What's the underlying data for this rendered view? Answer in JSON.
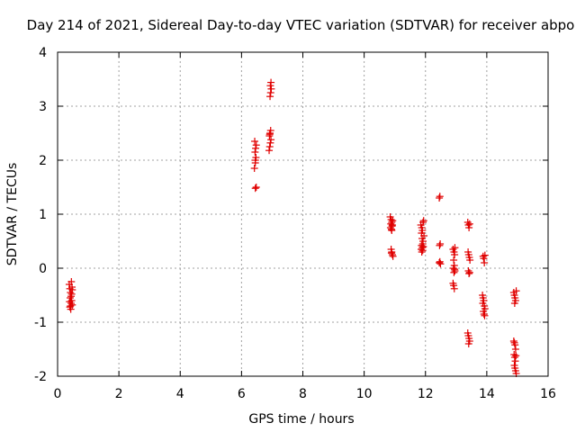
{
  "chart_data": {
    "type": "scatter",
    "title": "Day 214 of 2021, Sidereal Day-to-day VTEC variation (SDTVAR) for receiver abpo",
    "xlabel": "GPS time / hours",
    "ylabel": "SDTVAR / TECUs",
    "xlim": [
      0,
      16
    ],
    "ylim": [
      -2,
      4
    ],
    "xticks": [
      "0",
      "2",
      "4",
      "6",
      "8",
      "10",
      "12",
      "14",
      "16"
    ],
    "yticks": [
      "-2",
      "-1",
      "0",
      "1",
      "2",
      "3",
      "4"
    ],
    "grid": true,
    "marker": "+",
    "color": "#e00000",
    "series": [
      {
        "points": [
          [
            0.38,
            -0.3
          ],
          [
            0.4,
            -0.38
          ],
          [
            0.42,
            -0.45
          ],
          [
            0.44,
            -0.52
          ],
          [
            0.46,
            -0.6
          ],
          [
            0.48,
            -0.68
          ],
          [
            0.4,
            -0.72
          ],
          [
            0.43,
            -0.76
          ],
          [
            0.45,
            -0.25
          ],
          [
            0.47,
            -0.35
          ],
          [
            0.41,
            -0.55
          ],
          [
            0.44,
            -0.65
          ],
          [
            0.46,
            -0.48
          ],
          [
            0.39,
            -0.62
          ],
          [
            0.48,
            -0.4
          ],
          [
            0.42,
            -0.7
          ],
          [
            6.45,
            1.48
          ],
          [
            6.48,
            1.5
          ],
          [
            6.42,
            1.85
          ],
          [
            6.45,
            1.95
          ],
          [
            6.47,
            2.05
          ],
          [
            6.44,
            2.15
          ],
          [
            6.46,
            2.22
          ],
          [
            6.48,
            2.28
          ],
          [
            6.43,
            2.35
          ],
          [
            6.45,
            2.0
          ],
          [
            6.9,
            2.18
          ],
          [
            6.92,
            2.25
          ],
          [
            6.94,
            2.32
          ],
          [
            6.96,
            2.38
          ],
          [
            6.91,
            2.45
          ],
          [
            6.93,
            2.5
          ],
          [
            6.95,
            2.55
          ],
          [
            6.92,
            2.48
          ],
          [
            6.93,
            3.18
          ],
          [
            6.95,
            3.25
          ],
          [
            6.97,
            3.32
          ],
          [
            6.94,
            3.38
          ],
          [
            6.96,
            3.44
          ],
          [
            10.85,
            0.95
          ],
          [
            10.88,
            0.9
          ],
          [
            10.9,
            0.85
          ],
          [
            10.92,
            0.8
          ],
          [
            10.86,
            0.75
          ],
          [
            10.89,
            0.72
          ],
          [
            10.91,
            0.78
          ],
          [
            10.93,
            0.88
          ],
          [
            10.87,
            0.82
          ],
          [
            10.9,
            0.7
          ],
          [
            10.88,
            0.35
          ],
          [
            10.9,
            0.3
          ],
          [
            10.92,
            0.25
          ],
          [
            10.94,
            0.22
          ],
          [
            10.89,
            0.28
          ],
          [
            11.85,
            0.8
          ],
          [
            11.88,
            0.75
          ],
          [
            11.9,
            0.7
          ],
          [
            11.92,
            0.85
          ],
          [
            11.94,
            0.88
          ],
          [
            11.87,
            0.65
          ],
          [
            11.89,
            0.55
          ],
          [
            11.91,
            0.45
          ],
          [
            11.93,
            0.4
          ],
          [
            11.86,
            0.35
          ],
          [
            11.88,
            0.3
          ],
          [
            11.9,
            0.38
          ],
          [
            11.92,
            0.5
          ],
          [
            11.95,
            0.6
          ],
          [
            11.87,
            0.42
          ],
          [
            11.91,
            0.33
          ],
          [
            12.45,
            1.3
          ],
          [
            12.47,
            1.33
          ],
          [
            12.48,
            0.45
          ],
          [
            12.46,
            0.42
          ],
          [
            12.47,
            0.12
          ],
          [
            12.49,
            0.08
          ],
          [
            12.45,
            0.1
          ],
          [
            12.9,
            0.35
          ],
          [
            12.93,
            0.3
          ],
          [
            12.95,
            0.25
          ],
          [
            12.92,
            0.15
          ],
          [
            12.94,
            0.05
          ],
          [
            12.91,
            0.0
          ],
          [
            12.96,
            -0.05
          ],
          [
            12.93,
            -0.08
          ],
          [
            12.9,
            -0.28
          ],
          [
            12.92,
            -0.32
          ],
          [
            12.94,
            -0.38
          ],
          [
            12.96,
            0.38
          ],
          [
            12.95,
            -0.02
          ],
          [
            13.38,
            0.85
          ],
          [
            13.4,
            0.8
          ],
          [
            13.42,
            0.75
          ],
          [
            13.44,
            0.82
          ],
          [
            13.39,
            0.3
          ],
          [
            13.41,
            0.25
          ],
          [
            13.43,
            0.2
          ],
          [
            13.45,
            0.15
          ],
          [
            13.4,
            -0.05
          ],
          [
            13.42,
            -0.1
          ],
          [
            13.44,
            -0.08
          ],
          [
            13.38,
            -1.2
          ],
          [
            13.4,
            -1.25
          ],
          [
            13.42,
            -1.3
          ],
          [
            13.44,
            -1.35
          ],
          [
            13.41,
            -1.4
          ],
          [
            13.88,
            0.22
          ],
          [
            13.9,
            0.18
          ],
          [
            13.92,
            0.1
          ],
          [
            13.94,
            0.24
          ],
          [
            13.86,
            -0.5
          ],
          [
            13.88,
            -0.55
          ],
          [
            13.9,
            -0.6
          ],
          [
            13.92,
            -0.7
          ],
          [
            13.94,
            -0.75
          ],
          [
            13.89,
            -0.8
          ],
          [
            13.91,
            -0.85
          ],
          [
            13.93,
            -0.88
          ],
          [
            13.87,
            -0.65
          ],
          [
            14.88,
            -0.45
          ],
          [
            14.9,
            -0.5
          ],
          [
            14.92,
            -0.55
          ],
          [
            14.94,
            -0.6
          ],
          [
            14.96,
            -0.42
          ],
          [
            14.91,
            -0.65
          ],
          [
            14.88,
            -1.35
          ],
          [
            14.9,
            -1.38
          ],
          [
            14.92,
            -1.42
          ],
          [
            14.94,
            -1.5
          ],
          [
            14.89,
            -1.6
          ],
          [
            14.91,
            -1.65
          ],
          [
            14.93,
            -1.72
          ],
          [
            14.9,
            -1.8
          ],
          [
            14.92,
            -1.85
          ],
          [
            14.94,
            -1.9
          ],
          [
            14.96,
            -1.95
          ],
          [
            14.95,
            -1.62
          ]
        ]
      }
    ]
  }
}
